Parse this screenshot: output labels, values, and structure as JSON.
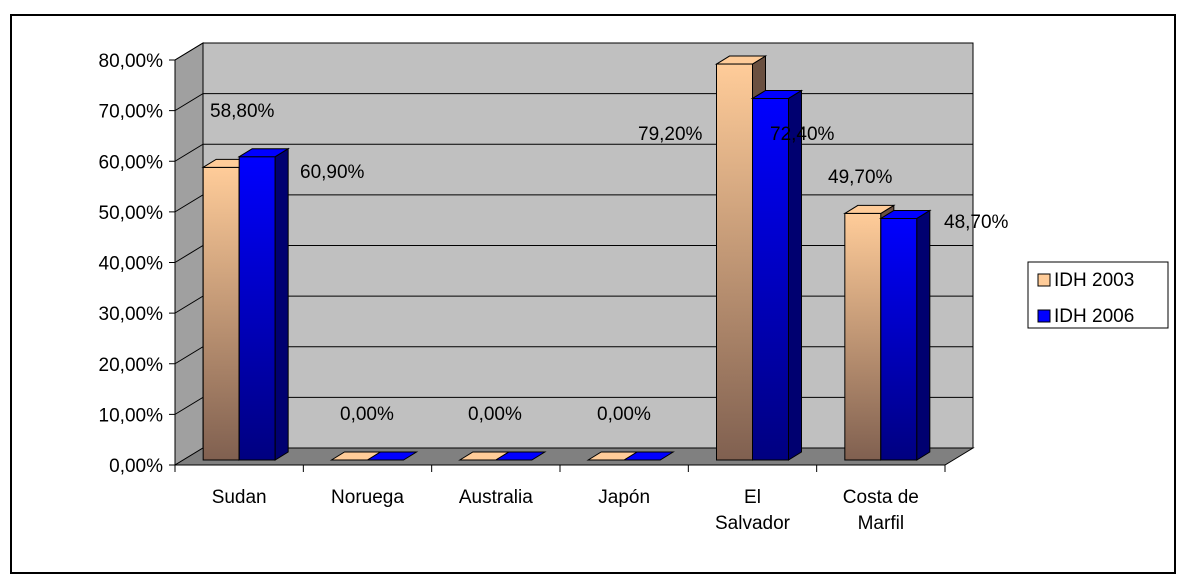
{
  "chart_data": {
    "type": "bar",
    "categories": [
      [
        "Sudan"
      ],
      [
        "Noruega"
      ],
      [
        "Australia"
      ],
      [
        "Japón"
      ],
      [
        "El",
        "Salvador"
      ],
      [
        "Costa de",
        "Marfil"
      ]
    ],
    "series": [
      {
        "name": "IDH 2003",
        "values": [
          58.8,
          0,
          0,
          0,
          79.2,
          49.7
        ],
        "labels": [
          "58,80%",
          "0,00%",
          "0,00%",
          "0,00%",
          "79,20%",
          "49,70%"
        ]
      },
      {
        "name": "IDH 2006",
        "values": [
          60.9,
          0,
          0,
          0,
          72.4,
          48.7
        ],
        "labels": [
          "60,90%",
          "",
          "",
          "",
          "72,40%",
          "48,70%"
        ]
      }
    ],
    "yticks": [
      "0,00%",
      "10,00%",
      "20,00%",
      "30,00%",
      "40,00%",
      "50,00%",
      "60,00%",
      "70,00%",
      "80,00%"
    ],
    "ylim": [
      0,
      80
    ],
    "grid": true,
    "legend_position": "right",
    "colors": {
      "series_2003_top": "#ffcc99",
      "series_2003_bottom": "#806050",
      "series_2006_top": "#0000ff",
      "series_2006_bottom": "#000080",
      "plot_wall": "#c0c0c0",
      "floor": "#808080"
    }
  }
}
